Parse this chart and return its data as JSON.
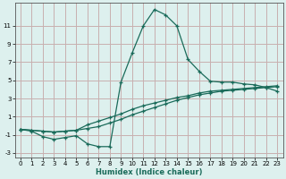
{
  "xlabel": "Humidex (Indice chaleur)",
  "background_color": "#ddf0ee",
  "grid_color": "#c8b0b0",
  "line_color": "#1a6b5a",
  "xlim": [
    -0.5,
    23.5
  ],
  "ylim": [
    -3.5,
    13.5
  ],
  "yticks": [
    -3,
    -1,
    1,
    3,
    5,
    7,
    9,
    11
  ],
  "xticks": [
    0,
    1,
    2,
    3,
    4,
    5,
    6,
    7,
    8,
    9,
    10,
    11,
    12,
    13,
    14,
    15,
    16,
    17,
    18,
    19,
    20,
    21,
    22,
    23
  ],
  "line1_x": [
    0,
    1,
    2,
    3,
    4,
    5,
    6,
    7,
    8,
    9,
    10,
    11,
    12,
    13,
    14,
    15,
    16,
    17,
    18,
    19,
    20,
    21,
    22,
    23
  ],
  "line1_y": [
    -0.4,
    -0.6,
    -1.2,
    -1.5,
    -1.3,
    -1.1,
    -2.0,
    -2.3,
    -2.3,
    4.8,
    8.0,
    11.0,
    12.8,
    12.2,
    11.0,
    7.3,
    6.0,
    4.9,
    4.8,
    4.8,
    4.6,
    4.5,
    4.2,
    3.8
  ],
  "line2_x": [
    0,
    1,
    2,
    3,
    4,
    5,
    6,
    7,
    8,
    9,
    10,
    11,
    12,
    13,
    14,
    15,
    16,
    17,
    18,
    19,
    20,
    21,
    22,
    23
  ],
  "line2_y": [
    -0.4,
    -0.5,
    -0.6,
    -0.7,
    -0.6,
    -0.5,
    -0.3,
    -0.1,
    0.3,
    0.7,
    1.2,
    1.6,
    2.0,
    2.4,
    2.8,
    3.1,
    3.4,
    3.6,
    3.8,
    3.9,
    4.0,
    4.1,
    4.2,
    4.3
  ],
  "line3_x": [
    0,
    1,
    2,
    3,
    4,
    5,
    6,
    7,
    8,
    9,
    10,
    11,
    12,
    13,
    14,
    15,
    16,
    17,
    18,
    19,
    20,
    21,
    22,
    23
  ],
  "line3_y": [
    -0.4,
    -0.5,
    -0.6,
    -0.7,
    -0.6,
    -0.5,
    0.1,
    0.5,
    0.9,
    1.3,
    1.8,
    2.2,
    2.5,
    2.8,
    3.1,
    3.3,
    3.6,
    3.8,
    3.9,
    4.0,
    4.1,
    4.2,
    4.3,
    4.4
  ]
}
